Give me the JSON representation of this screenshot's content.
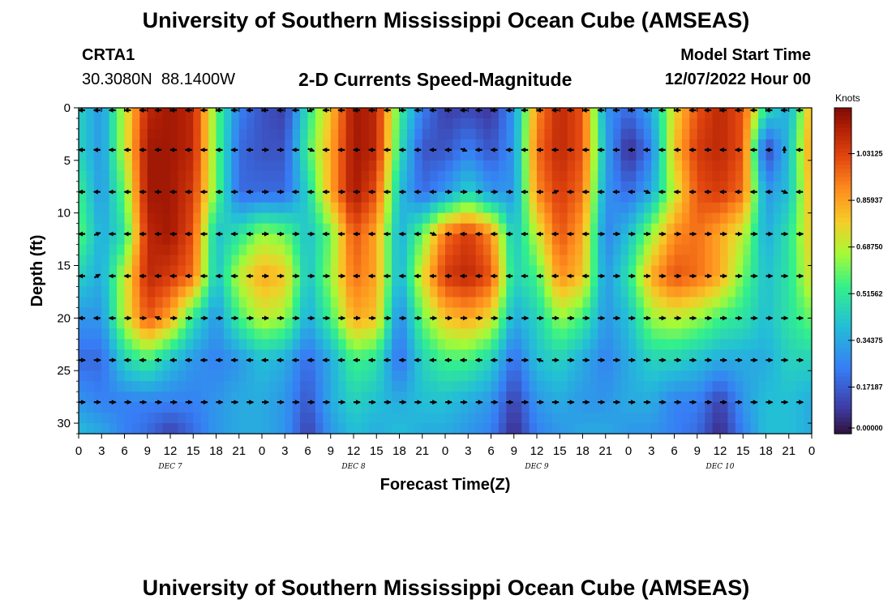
{
  "page": {
    "title": "University of Southern Mississippi Ocean Cube (AMSEAS)",
    "station_id": "CRTA1",
    "station_coords": "30.3080N  88.1400W",
    "plot_title": "2-D Currents Speed-Magnitude",
    "model_start_label": "Model Start Time",
    "model_start_value": "12/07/2022 Hour 00",
    "footer_title": "University of Southern Mississippi Ocean Cube (AMSEAS)"
  },
  "chart_data": {
    "type": "heatmap",
    "title": "2-D Currents Speed-Magnitude",
    "xlabel": "Forecast Time(Z)",
    "ylabel": "Depth (ft)",
    "xlim": [
      0,
      96
    ],
    "ylim": [
      31,
      0
    ],
    "x_tick_labels": [
      "0",
      "3",
      "6",
      "9",
      "12",
      "15",
      "18",
      "21",
      "0",
      "3",
      "6",
      "9",
      "12",
      "15",
      "18",
      "21",
      "0",
      "3",
      "6",
      "9",
      "12",
      "15",
      "18",
      "21",
      "0",
      "3",
      "6",
      "9",
      "12",
      "15",
      "18",
      "21",
      "0"
    ],
    "y_ticks": [
      0,
      5,
      10,
      15,
      20,
      25,
      30
    ],
    "day_labels": [
      {
        "label": "DEC 7",
        "hour": 12
      },
      {
        "label": "DEC 8",
        "hour": 36
      },
      {
        "label": "DEC 9",
        "hour": 60
      },
      {
        "label": "DEC 10",
        "hour": 84
      }
    ],
    "colorbar": {
      "label": "Knots",
      "ticks": [
        "0.00000",
        "0.17187",
        "0.34375",
        "0.51562",
        "0.68750",
        "0.85937",
        "1.03125"
      ],
      "range": [
        0,
        1.2
      ]
    },
    "speed_field_knots": {
      "x_hours": [
        0,
        3,
        6,
        9,
        12,
        15,
        18,
        21,
        24,
        27,
        30,
        33,
        36,
        39,
        42,
        45,
        48,
        51,
        54,
        57,
        60,
        63,
        66,
        69,
        72,
        75,
        78,
        81,
        84,
        87,
        90,
        93,
        96
      ],
      "depth_ft": [
        0,
        4,
        8,
        12,
        16,
        20,
        24,
        28,
        31
      ],
      "values": [
        [
          0.45,
          0.3,
          0.7,
          1.1,
          1.15,
          1.1,
          0.6,
          0.25,
          0.15,
          0.1,
          0.5,
          0.8,
          1.15,
          1.1,
          0.55,
          0.25,
          0.1,
          0.12,
          0.08,
          0.3,
          0.9,
          1.1,
          1.0,
          0.3,
          0.2,
          0.35,
          0.75,
          1.0,
          1.1,
          1.0,
          0.5,
          0.35,
          0.85
        ],
        [
          0.45,
          0.3,
          0.7,
          1.15,
          1.15,
          1.1,
          0.6,
          0.2,
          0.15,
          0.15,
          0.55,
          0.85,
          1.15,
          1.1,
          0.5,
          0.15,
          0.15,
          0.25,
          0.15,
          0.3,
          0.95,
          1.1,
          1.0,
          0.35,
          0.05,
          0.25,
          0.8,
          1.05,
          1.1,
          1.0,
          0.1,
          0.4,
          0.9
        ],
        [
          0.55,
          0.3,
          0.6,
          1.15,
          1.15,
          1.05,
          0.6,
          0.2,
          0.2,
          0.2,
          0.45,
          0.85,
          1.15,
          1.0,
          0.4,
          0.2,
          0.3,
          0.45,
          0.3,
          0.3,
          0.9,
          1.05,
          0.95,
          0.3,
          0.2,
          0.35,
          0.7,
          1.0,
          1.05,
          0.95,
          0.3,
          0.4,
          0.85
        ],
        [
          0.6,
          0.35,
          0.5,
          1.1,
          1.15,
          1.0,
          0.4,
          0.5,
          0.65,
          0.6,
          0.4,
          0.6,
          1.0,
          0.85,
          0.35,
          0.6,
          0.95,
          1.05,
          0.9,
          0.4,
          0.7,
          1.0,
          0.85,
          0.25,
          0.4,
          0.65,
          0.9,
          0.95,
          0.85,
          0.7,
          0.35,
          0.5,
          0.8
        ],
        [
          0.45,
          0.35,
          0.7,
          1.1,
          1.05,
          0.95,
          0.4,
          0.7,
          0.85,
          0.8,
          0.4,
          0.65,
          0.95,
          0.85,
          0.35,
          0.75,
          1.05,
          1.1,
          1.0,
          0.45,
          0.55,
          0.9,
          0.8,
          0.3,
          0.5,
          0.85,
          1.0,
          0.95,
          0.85,
          0.6,
          0.4,
          0.5,
          0.75
        ],
        [
          0.3,
          0.3,
          0.7,
          1.0,
          0.85,
          0.5,
          0.3,
          0.55,
          0.7,
          0.65,
          0.35,
          0.55,
          0.85,
          0.8,
          0.25,
          0.6,
          0.8,
          0.85,
          0.75,
          0.35,
          0.45,
          0.65,
          0.55,
          0.3,
          0.4,
          0.65,
          0.7,
          0.65,
          0.55,
          0.5,
          0.4,
          0.5,
          0.6
        ],
        [
          0.2,
          0.2,
          0.45,
          0.55,
          0.4,
          0.3,
          0.25,
          0.3,
          0.4,
          0.35,
          0.2,
          0.35,
          0.55,
          0.5,
          0.2,
          0.45,
          0.55,
          0.55,
          0.45,
          0.2,
          0.4,
          0.45,
          0.35,
          0.25,
          0.35,
          0.45,
          0.45,
          0.4,
          0.35,
          0.35,
          0.35,
          0.45,
          0.45
        ],
        [
          0.3,
          0.25,
          0.25,
          0.25,
          0.25,
          0.25,
          0.3,
          0.35,
          0.35,
          0.3,
          0.15,
          0.35,
          0.45,
          0.4,
          0.35,
          0.4,
          0.4,
          0.35,
          0.3,
          0.1,
          0.3,
          0.35,
          0.3,
          0.3,
          0.35,
          0.35,
          0.25,
          0.25,
          0.1,
          0.3,
          0.4,
          0.4,
          0.35
        ],
        [
          0.4,
          0.35,
          0.25,
          0.2,
          0.1,
          0.2,
          0.3,
          0.35,
          0.35,
          0.3,
          0.1,
          0.3,
          0.4,
          0.35,
          0.4,
          0.35,
          0.35,
          0.3,
          0.25,
          0.05,
          0.25,
          0.3,
          0.35,
          0.35,
          0.3,
          0.3,
          0.25,
          0.2,
          0.05,
          0.25,
          0.4,
          0.4,
          0.35
        ]
      ]
    },
    "current_vectors": {
      "depth_ft": [
        0,
        4,
        8,
        12,
        16,
        20,
        24,
        28
      ],
      "x_hours": [
        0,
        2,
        4,
        6,
        8,
        10,
        12,
        14,
        16,
        18,
        20,
        22,
        24,
        26,
        28,
        30,
        32,
        34,
        36,
        38,
        40,
        42,
        44,
        46,
        48,
        50,
        52,
        54,
        56,
        58,
        60,
        62,
        64,
        66,
        68,
        70,
        72,
        74,
        76,
        78,
        80,
        82,
        84,
        86,
        88,
        90,
        92,
        94
      ],
      "direction_note": "arrow direction in degrees, math convention (0 = east/right, 180 = west/left, 90 = up)",
      "directions_deg": [
        [
          180,
          180,
          180,
          180,
          180,
          180,
          180,
          180,
          180,
          180,
          180,
          180,
          180,
          180,
          180,
          200,
          180,
          180,
          180,
          180,
          180,
          180,
          180,
          180,
          180,
          180,
          180,
          180,
          180,
          180,
          180,
          180,
          180,
          180,
          180,
          180,
          180,
          180,
          180,
          180,
          180,
          180,
          180,
          180,
          180,
          180,
          180,
          180
        ],
        [
          180,
          180,
          180,
          180,
          180,
          180,
          180,
          180,
          180,
          180,
          180,
          180,
          0,
          0,
          180,
          340,
          180,
          180,
          180,
          180,
          180,
          180,
          180,
          180,
          180,
          340,
          180,
          180,
          180,
          180,
          180,
          180,
          180,
          180,
          180,
          180,
          180,
          180,
          180,
          180,
          180,
          180,
          180,
          180,
          180,
          180,
          90,
          180
        ],
        [
          180,
          180,
          180,
          180,
          180,
          180,
          180,
          180,
          180,
          180,
          180,
          180,
          0,
          0,
          180,
          180,
          180,
          0,
          180,
          180,
          180,
          180,
          180,
          180,
          0,
          0,
          0,
          0,
          0,
          180,
          180,
          20,
          180,
          180,
          180,
          180,
          180,
          340,
          180,
          180,
          180,
          180,
          180,
          180,
          180,
          180,
          340,
          180
        ],
        [
          180,
          20,
          180,
          180,
          180,
          180,
          180,
          180,
          180,
          180,
          180,
          180,
          0,
          0,
          0,
          0,
          180,
          180,
          180,
          180,
          180,
          180,
          180,
          340,
          180,
          180,
          180,
          180,
          180,
          180,
          180,
          180,
          180,
          180,
          0,
          0,
          0,
          0,
          0,
          0,
          0,
          0,
          0,
          0,
          0,
          0,
          0,
          0
        ],
        [
          180,
          30,
          180,
          180,
          180,
          180,
          180,
          180,
          180,
          180,
          180,
          180,
          0,
          0,
          0,
          0,
          0,
          0,
          180,
          180,
          180,
          180,
          180,
          180,
          180,
          180,
          180,
          180,
          180,
          180,
          180,
          180,
          180,
          180,
          0,
          0,
          0,
          0,
          0,
          0,
          0,
          0,
          0,
          0,
          0,
          0,
          0,
          0
        ],
        [
          180,
          180,
          180,
          0,
          0,
          160,
          0,
          0,
          0,
          0,
          0,
          0,
          0,
          0,
          0,
          0,
          0,
          0,
          0,
          0,
          0,
          0,
          0,
          0,
          0,
          0,
          0,
          0,
          0,
          0,
          0,
          0,
          0,
          0,
          0,
          0,
          0,
          0,
          0,
          0,
          0,
          0,
          0,
          0,
          0,
          0,
          0,
          0
        ],
        [
          0,
          0,
          0,
          180,
          180,
          180,
          180,
          180,
          180,
          180,
          180,
          180,
          180,
          180,
          180,
          180,
          180,
          180,
          180,
          180,
          180,
          180,
          180,
          180,
          180,
          180,
          180,
          180,
          0,
          0,
          160,
          0,
          0,
          0,
          0,
          0,
          0,
          0,
          0,
          0,
          0,
          0,
          0,
          0,
          0,
          0,
          0,
          0
        ],
        [
          0,
          0,
          0,
          0,
          0,
          0,
          0,
          0,
          0,
          0,
          0,
          0,
          0,
          0,
          0,
          0,
          0,
          0,
          0,
          0,
          0,
          0,
          0,
          0,
          0,
          0,
          0,
          0,
          0,
          0,
          0,
          0,
          0,
          0,
          0,
          0,
          0,
          0,
          0,
          0,
          0,
          0,
          0,
          0,
          0,
          0,
          0,
          0
        ]
      ]
    }
  }
}
